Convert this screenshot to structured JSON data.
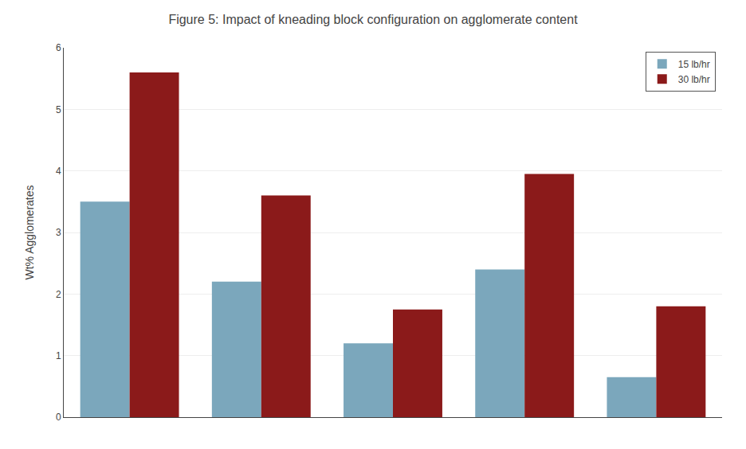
{
  "chart_data": {
    "type": "bar",
    "title": "Figure 5: Impact of kneading block configuration on agglomerate content",
    "ylabel": "Wt% Agglomerates",
    "categories": [
      null,
      null,
      null,
      null,
      null
    ],
    "series": [
      {
        "name": "15 lb/hr",
        "color": "#7BA7BC",
        "values": [
          3.5,
          2.2,
          1.2,
          2.4,
          0.65
        ]
      },
      {
        "name": "30 lb/hr",
        "color": "#8B1A1A",
        "values": [
          5.6,
          3.6,
          1.75,
          3.95,
          1.8
        ]
      }
    ],
    "ylim": [
      0,
      6
    ],
    "yticks": [
      0,
      1,
      2,
      3,
      4,
      5,
      6
    ],
    "grid": true,
    "legend": "upper right",
    "tick_labels": "y"
  }
}
